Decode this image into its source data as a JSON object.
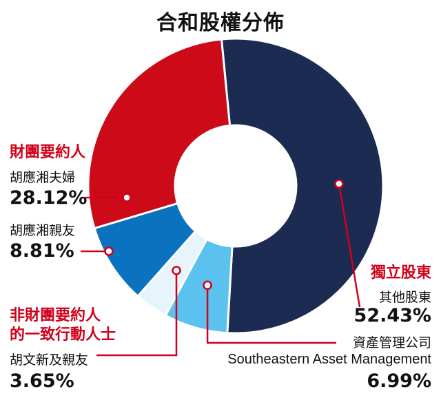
{
  "chart_data": {
    "type": "pie",
    "title": "合和股權分佈",
    "categories": [
      "其他股東",
      "資產管理公司",
      "胡文新及親友",
      "胡應湘親友",
      "胡應湘夫婦"
    ],
    "values": [
      52.43,
      6.99,
      3.65,
      8.81,
      28.12
    ],
    "colors": [
      "#1b2b52",
      "#5bc2ef",
      "#e8f4fb",
      "#0b72c0",
      "#cc0a18"
    ],
    "slices": [
      {
        "name": "其他股東",
        "value_label": "52.43%",
        "value": 52.43,
        "color": "#1b2b52"
      },
      {
        "name": "資產管理公司",
        "name_en": "Southeastern Asset Management",
        "value_label": "6.99%",
        "value": 6.99,
        "color": "#5bc2ef"
      },
      {
        "name": "胡文新及親友",
        "value_label": "3.65%",
        "value": 3.65,
        "color": "#e8f4fb"
      },
      {
        "name": "胡應湘親友",
        "value_label": "8.81%",
        "value": 8.81,
        "color": "#0b72c0"
      },
      {
        "name": "胡應湘夫婦",
        "value_label": "28.12%",
        "value": 28.12,
        "color": "#cc0a18"
      }
    ],
    "groups": {
      "independent": "獨立股東",
      "consortium": "財團要約人",
      "non_consortium_line1": "非財團要約人",
      "non_consortium_line2": "的一致行動人士"
    },
    "accent_color": "#d0021b"
  }
}
